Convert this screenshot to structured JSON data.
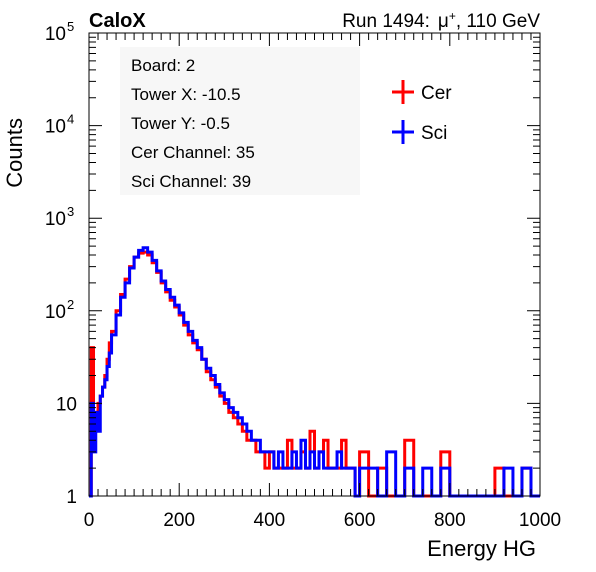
{
  "header": {
    "left": "CaloX",
    "right_prefix": "Run 1494:",
    "right_particle": "μ",
    "right_charge": "+",
    "right_suffix": ", 110 GeV"
  },
  "info_box": [
    "Board: 2",
    "Tower X: -10.5",
    "Tower Y: -0.5",
    "Cer Channel: 35",
    "Sci Channel: 39"
  ],
  "colors": {
    "cer": "#ff0000",
    "sci": "#0000ff",
    "axis": "#000000"
  },
  "chart_data": {
    "type": "line",
    "title": "",
    "xlabel": "Energy HG",
    "ylabel": "Counts",
    "xlim": [
      0,
      1000
    ],
    "ylim": [
      1,
      100000
    ],
    "yscale": "log",
    "grid": false,
    "legend": "top-right",
    "x_ticks": [
      "0",
      "200",
      "400",
      "600",
      "800",
      "1000"
    ],
    "y_ticks": [
      {
        "base": "1",
        "exp": ""
      },
      {
        "base": "10",
        "exp": ""
      },
      {
        "base": "10",
        "exp": "2"
      },
      {
        "base": "10",
        "exp": "3"
      },
      {
        "base": "10",
        "exp": "4"
      },
      {
        "base": "10",
        "exp": "5"
      }
    ],
    "series": [
      {
        "name": "Cer",
        "color": "#ff0000",
        "x": [
          0,
          5,
          10,
          15,
          20,
          25,
          30,
          35,
          40,
          45,
          50,
          60,
          70,
          80,
          90,
          100,
          110,
          120,
          130,
          140,
          150,
          160,
          170,
          180,
          190,
          200,
          210,
          220,
          230,
          240,
          250,
          260,
          270,
          280,
          290,
          300,
          310,
          320,
          330,
          340,
          350,
          360,
          370,
          380,
          390,
          400,
          410,
          420,
          430,
          440,
          450,
          460,
          470,
          480,
          490,
          500,
          510,
          520,
          530,
          540,
          550,
          560,
          570,
          580,
          590,
          600,
          620,
          640,
          660,
          680,
          700,
          720,
          740,
          760,
          780,
          800,
          820,
          840,
          860,
          880,
          900,
          920,
          940,
          960,
          980,
          1000
        ],
        "y": [
          1,
          40,
          8,
          6,
          10,
          12,
          15,
          20,
          30,
          45,
          60,
          100,
          150,
          220,
          300,
          380,
          420,
          430,
          400,
          330,
          260,
          200,
          160,
          130,
          110,
          90,
          70,
          55,
          45,
          38,
          30,
          22,
          18,
          15,
          12,
          10,
          8,
          7,
          6,
          5,
          4,
          4,
          3,
          3,
          2,
          3,
          2,
          2,
          2,
          4,
          2,
          2,
          3,
          2,
          5,
          2,
          3,
          4,
          2,
          2,
          2,
          4,
          2,
          2,
          1,
          3,
          1,
          2,
          1,
          1,
          4,
          1,
          1,
          1,
          3,
          1,
          1,
          1,
          1,
          1,
          2,
          1,
          1,
          2,
          1,
          1
        ]
      },
      {
        "name": "Sci",
        "color": "#0000ff",
        "x": [
          0,
          5,
          10,
          15,
          20,
          25,
          30,
          35,
          40,
          45,
          50,
          60,
          70,
          80,
          90,
          100,
          110,
          120,
          130,
          140,
          150,
          160,
          170,
          180,
          190,
          200,
          210,
          220,
          230,
          240,
          250,
          260,
          270,
          280,
          290,
          300,
          310,
          320,
          330,
          340,
          350,
          360,
          370,
          380,
          390,
          400,
          410,
          420,
          430,
          440,
          450,
          460,
          470,
          480,
          490,
          500,
          510,
          520,
          530,
          540,
          550,
          560,
          570,
          580,
          590,
          600,
          620,
          640,
          660,
          680,
          700,
          720,
          740,
          760,
          780,
          800,
          820,
          840,
          860,
          880,
          900,
          920,
          940,
          960,
          980,
          1000
        ],
        "y": [
          1,
          10,
          3,
          8,
          5,
          12,
          15,
          18,
          25,
          35,
          55,
          90,
          140,
          200,
          290,
          380,
          450,
          480,
          430,
          350,
          270,
          210,
          170,
          140,
          115,
          95,
          75,
          60,
          48,
          40,
          30,
          24,
          20,
          16,
          13,
          11,
          9,
          8,
          7,
          6,
          5,
          4,
          4,
          3,
          3,
          3,
          2,
          3,
          2,
          2,
          3,
          2,
          4,
          2,
          3,
          2,
          3,
          2,
          2,
          2,
          3,
          2,
          2,
          2,
          1,
          2,
          2,
          1,
          3,
          1,
          2,
          1,
          2,
          1,
          2,
          1,
          1,
          1,
          1,
          1,
          1,
          2,
          1,
          2,
          1,
          1
        ]
      }
    ]
  }
}
